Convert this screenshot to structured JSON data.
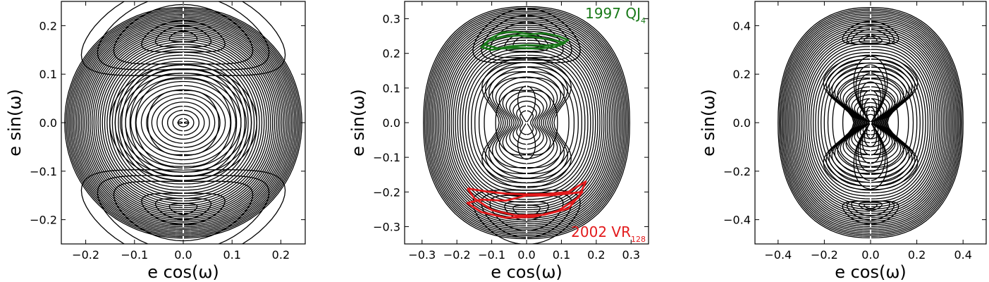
{
  "chart_data": [
    {
      "type": "contour",
      "xlabel": "e cos(ω)",
      "ylabel": "e sin(ω)",
      "xlim": [
        -0.25,
        0.25
      ],
      "ylim": [
        -0.25,
        0.25
      ],
      "xticks": [
        -0.2,
        -0.1,
        0.0,
        0.1,
        0.2
      ],
      "xtick_labels": [
        "−0.2",
        "−0.1",
        "0.0",
        "0.1",
        "0.2"
      ],
      "yticks": [
        -0.2,
        -0.1,
        0.0,
        0.1,
        0.2
      ],
      "ytick_labels": [
        "−0.2",
        "−0.1",
        "0.0",
        "0.1",
        "0.2"
      ],
      "emax_x": 0.243,
      "emax_y": 0.238,
      "ring_count": 34,
      "islands": [
        {
          "cy": 0.178,
          "levels": [
            0.9,
            0.6,
            0.3
          ],
          "rx": 0.095,
          "ry": 0.036
        },
        {
          "cy": -0.178,
          "levels": [
            0.9,
            0.6,
            0.3
          ],
          "rx": 0.095,
          "ry": 0.036
        }
      ],
      "center_structure": "concentric",
      "grid": false,
      "annotations": []
    },
    {
      "type": "contour",
      "xlabel": "e cos(ω)",
      "ylabel": "e sin(ω)",
      "xlim": [
        -0.35,
        0.35
      ],
      "ylim": [
        -0.35,
        0.35
      ],
      "xticks": [
        -0.3,
        -0.2,
        -0.1,
        0.0,
        0.1,
        0.2,
        0.3
      ],
      "xtick_labels": [
        "−0.3",
        "−0.2",
        "−0.1",
        "0.0",
        "0.1",
        "0.2",
        "0.3"
      ],
      "yticks": [
        -0.3,
        -0.2,
        -0.1,
        0.0,
        0.1,
        0.2,
        0.3
      ],
      "ytick_labels": [
        "−0.3",
        "−0.2",
        "−0.1",
        "0.0",
        "0.1",
        "0.2",
        "0.3"
      ],
      "emax_x": 0.296,
      "emax_y": 0.335,
      "ring_count": 30,
      "islands": [
        {
          "cy": 0.233,
          "levels": [
            0.9,
            0.55
          ],
          "rx": 0.07,
          "ry": 0.03
        },
        {
          "cy": -0.255,
          "levels": [
            0.9,
            0.55
          ],
          "rx": 0.07,
          "ry": 0.03
        }
      ],
      "center_structure": "figure-eight",
      "grid": false,
      "annotations": [
        {
          "text": "1997 QJ",
          "sub": "4",
          "color": "#1a7a1a",
          "corner": "top-right"
        },
        {
          "text": "2002 VR",
          "sub": "128",
          "color": "#e31a1c",
          "corner": "bottom-right"
        }
      ],
      "trajectories": [
        {
          "name": "1997 QJ4",
          "color": "#1a7a1a",
          "points": [
            [
              -0.12,
              0.225
            ],
            [
              -0.1,
              0.245
            ],
            [
              -0.07,
              0.26
            ],
            [
              -0.03,
              0.262
            ],
            [
              0.01,
              0.255
            ],
            [
              0.05,
              0.258
            ],
            [
              0.09,
              0.25
            ],
            [
              0.12,
              0.238
            ],
            [
              0.09,
              0.226
            ],
            [
              0.05,
              0.222
            ],
            [
              0.0,
              0.224
            ],
            [
              -0.05,
              0.22
            ],
            [
              -0.1,
              0.21
            ],
            [
              -0.13,
              0.218
            ],
            [
              -0.11,
              0.236
            ],
            [
              -0.07,
              0.248
            ],
            [
              -0.02,
              0.252
            ],
            [
              0.03,
              0.246
            ],
            [
              0.08,
              0.238
            ],
            [
              0.11,
              0.23
            ],
            [
              0.08,
              0.218
            ],
            [
              0.03,
              0.214
            ],
            [
              -0.03,
              0.216
            ],
            [
              -0.08,
              0.214
            ],
            [
              -0.12,
              0.225
            ]
          ]
        },
        {
          "name": "2002 VR128",
          "color": "#e31a1c",
          "points": [
            [
              -0.17,
              -0.19
            ],
            [
              -0.12,
              -0.198
            ],
            [
              -0.06,
              -0.205
            ],
            [
              0.0,
              -0.207
            ],
            [
              0.06,
              -0.206
            ],
            [
              0.12,
              -0.2
            ],
            [
              0.17,
              -0.17
            ],
            [
              0.15,
              -0.215
            ],
            [
              0.09,
              -0.255
            ],
            [
              0.02,
              -0.272
            ],
            [
              -0.06,
              -0.274
            ],
            [
              -0.13,
              -0.258
            ],
            [
              -0.17,
              -0.232
            ],
            [
              -0.13,
              -0.222
            ],
            [
              -0.06,
              -0.225
            ],
            [
              0.0,
              -0.21
            ],
            [
              0.06,
              -0.21
            ],
            [
              0.12,
              -0.205
            ],
            [
              0.16,
              -0.2
            ],
            [
              0.12,
              -0.248
            ],
            [
              0.05,
              -0.266
            ],
            [
              -0.03,
              -0.268
            ],
            [
              -0.1,
              -0.252
            ],
            [
              -0.15,
              -0.218
            ],
            [
              -0.17,
              -0.19
            ]
          ]
        }
      ]
    },
    {
      "type": "contour",
      "xlabel": "e cos(ω)",
      "ylabel": "e sin(ω)",
      "xlim": [
        -0.5,
        0.5
      ],
      "ylim": [
        -0.5,
        0.5
      ],
      "xticks": [
        -0.4,
        -0.2,
        0.0,
        0.2,
        0.4
      ],
      "xtick_labels": [
        "−0.4",
        "−0.2",
        "0.0",
        "0.2",
        "0.4"
      ],
      "yticks": [
        -0.4,
        -0.2,
        0.0,
        0.2,
        0.4
      ],
      "ytick_labels": [
        "−0.4",
        "−0.2",
        "0.0",
        "0.2",
        "0.4"
      ],
      "emax_x": 0.4,
      "emax_y": 0.475,
      "ring_count": 30,
      "islands": [
        {
          "cy": 0.345,
          "levels": [
            0.9,
            0.5
          ],
          "rx": 0.055,
          "ry": 0.018
        },
        {
          "cy": -0.345,
          "levels": [
            0.9,
            0.5
          ],
          "rx": 0.055,
          "ry": 0.018
        }
      ],
      "center_structure": "bowtie",
      "grid": false,
      "annotations": []
    }
  ]
}
